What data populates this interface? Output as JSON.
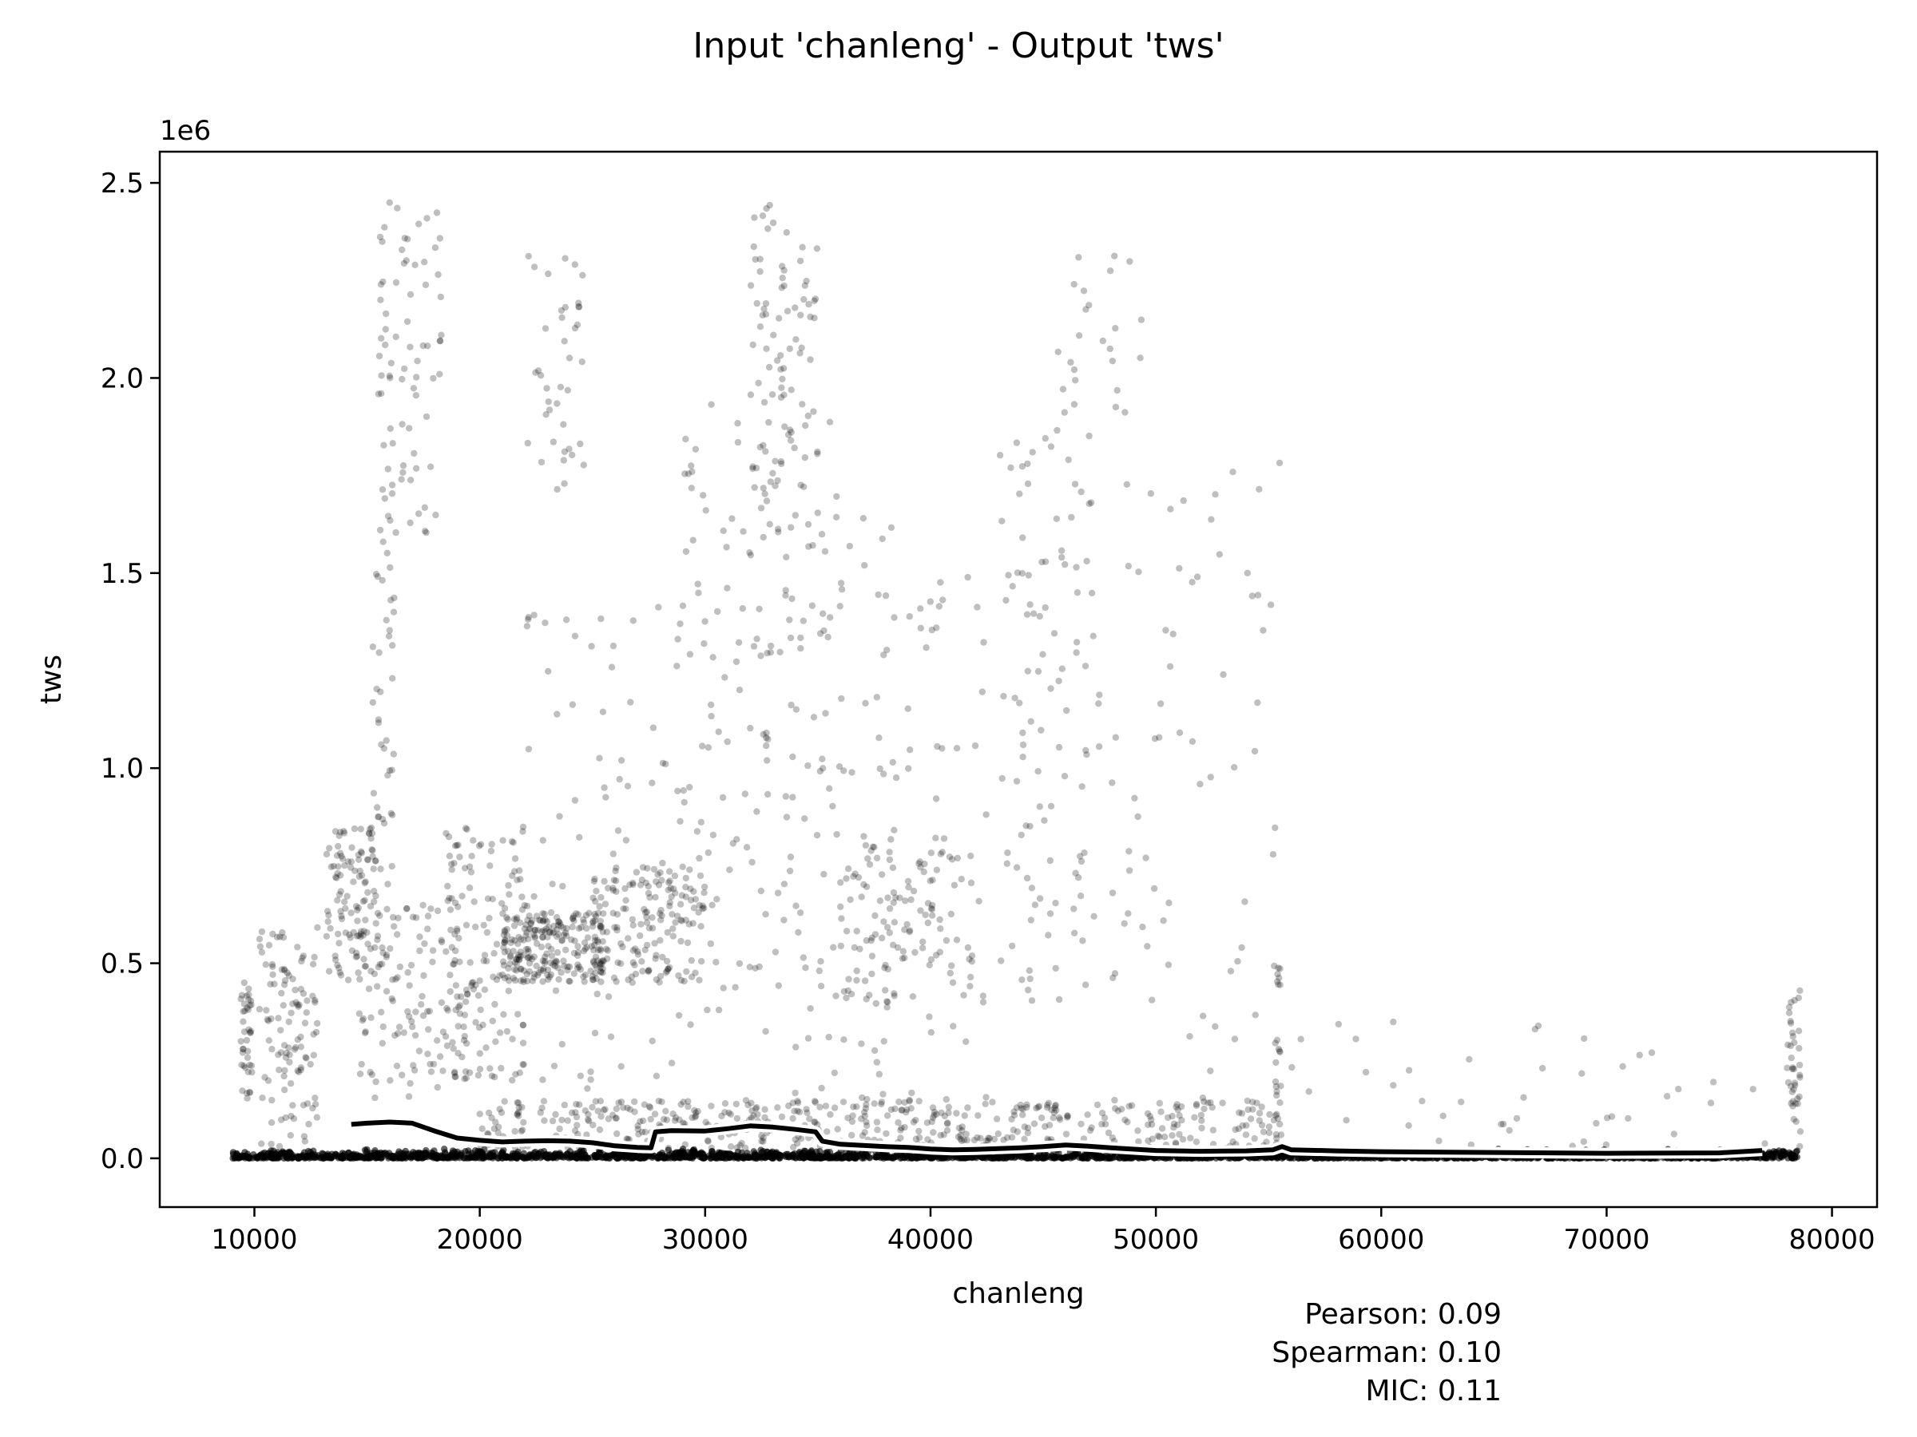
{
  "chart_data": {
    "type": "scatter",
    "title": "Input 'chanleng' - Output 'tws'",
    "xlabel": "chanleng",
    "ylabel": "tws",
    "y_offset_text": "1e6",
    "xlim": [
      5800,
      82000
    ],
    "ylim": [
      -125000,
      2580000
    ],
    "x_ticks": [
      10000,
      20000,
      30000,
      40000,
      50000,
      60000,
      70000,
      80000
    ],
    "x_tick_labels": [
      "10000",
      "20000",
      "30000",
      "40000",
      "50000",
      "60000",
      "70000",
      "80000"
    ],
    "y_ticks": [
      0,
      500000,
      1000000,
      1500000,
      2000000,
      2500000
    ],
    "y_tick_labels": [
      "0.0",
      "0.5",
      "1.0",
      "1.5",
      "2.0",
      "2.5"
    ],
    "grid": false,
    "point_color": "#000000",
    "point_alpha": 0.25,
    "trend_line": {
      "x": [
        14300,
        15000,
        16000,
        17000,
        18000,
        19000,
        20000,
        21000,
        22000,
        23000,
        24000,
        25000,
        26000,
        27000,
        27600,
        27800,
        28500,
        30000,
        31000,
        32000,
        33000,
        34000,
        34900,
        35200,
        36000,
        37000,
        38000,
        39000,
        40000,
        41000,
        42000,
        43000,
        44000,
        45000,
        46000,
        47000,
        48000,
        50000,
        52000,
        54000,
        55200,
        55600,
        56000,
        58000,
        60000,
        65000,
        70000,
        75000,
        76900
      ],
      "y": [
        87000,
        90000,
        93000,
        90000,
        70000,
        52000,
        46000,
        42000,
        44000,
        45000,
        44000,
        40000,
        32000,
        28000,
        27000,
        68000,
        71000,
        70000,
        76000,
        83000,
        80000,
        74000,
        68000,
        44000,
        36000,
        33000,
        30000,
        28000,
        24000,
        22000,
        23000,
        25000,
        27000,
        30000,
        34000,
        31000,
        27000,
        20000,
        18000,
        19000,
        22000,
        30000,
        22000,
        19000,
        17000,
        15000,
        13000,
        14000,
        20000
      ]
    },
    "series": [
      {
        "type": "dense_band",
        "x_range": [
          9000,
          78500
        ],
        "y_max": 25000
      },
      {
        "type": "scatter_clusters",
        "clusters": [
          {
            "x": [
              9400,
              9900
            ],
            "y": [
              150000,
              450000
            ],
            "n": 40
          },
          {
            "x": [
              10200,
              12800
            ],
            "y": [
              20000,
              600000
            ],
            "n": 110
          },
          {
            "x": [
              13200,
              15500
            ],
            "y": [
              450000,
              850000
            ],
            "n": 110
          },
          {
            "x": [
              15200,
              16200
            ],
            "y": [
              700000,
              1600000
            ],
            "n": 40
          },
          {
            "x": [
              15500,
              18300
            ],
            "y": [
              1600000,
              2450000
            ],
            "n": 80
          },
          {
            "x": [
              14500,
              19500
            ],
            "y": [
              150000,
              650000
            ],
            "n": 120
          },
          {
            "x": [
              18500,
              22000
            ],
            "y": [
              200000,
              850000
            ],
            "n": 140
          },
          {
            "x": [
              21000,
              25500
            ],
            "y": [
              450000,
              630000
            ],
            "n": 220
          },
          {
            "x": [
              25000,
              30000
            ],
            "y": [
              450000,
              750000
            ],
            "n": 160
          },
          {
            "x": [
              22000,
              24800
            ],
            "y": [
              1700000,
              2320000
            ],
            "n": 40
          },
          {
            "x": [
              22000,
              29000
            ],
            "y": [
              100000,
              1500000
            ],
            "n": 80
          },
          {
            "x": [
              29000,
              33000
            ],
            "y": [
              300000,
              2000000
            ],
            "n": 100
          },
          {
            "x": [
              32000,
              35000
            ],
            "y": [
              1500000,
              2460000
            ],
            "n": 90
          },
          {
            "x": [
              33000,
              38500
            ],
            "y": [
              150000,
              1900000
            ],
            "n": 110
          },
          {
            "x": [
              36000,
              42000
            ],
            "y": [
              400000,
              800000
            ],
            "n": 110
          },
          {
            "x": [
              37500,
              42500
            ],
            "y": [
              150000,
              1500000
            ],
            "n": 50
          },
          {
            "x": [
              43000,
              47500
            ],
            "y": [
              400000,
              1900000
            ],
            "n": 110
          },
          {
            "x": [
              45500,
              49500
            ],
            "y": [
              1900000,
              2400000
            ],
            "n": 25
          },
          {
            "x": [
              48000,
              55500
            ],
            "y": [
              100000,
              1800000
            ],
            "n": 70
          },
          {
            "x": [
              20000,
              55500
            ],
            "y": [
              25000,
              150000
            ],
            "n": 500
          },
          {
            "x": [
              55200,
              55600
            ],
            "y": [
              30000,
              520000
            ],
            "n": 25
          },
          {
            "x": [
              56000,
              77500
            ],
            "y": [
              15000,
              350000
            ],
            "n": 45
          },
          {
            "x": [
              78000,
              78600
            ],
            "y": [
              20000,
              450000
            ],
            "n": 40
          }
        ]
      }
    ]
  },
  "stats": {
    "pearson": "Pearson: 0.09",
    "spearman": "Spearman: 0.10",
    "mic": "MIC: 0.11"
  }
}
